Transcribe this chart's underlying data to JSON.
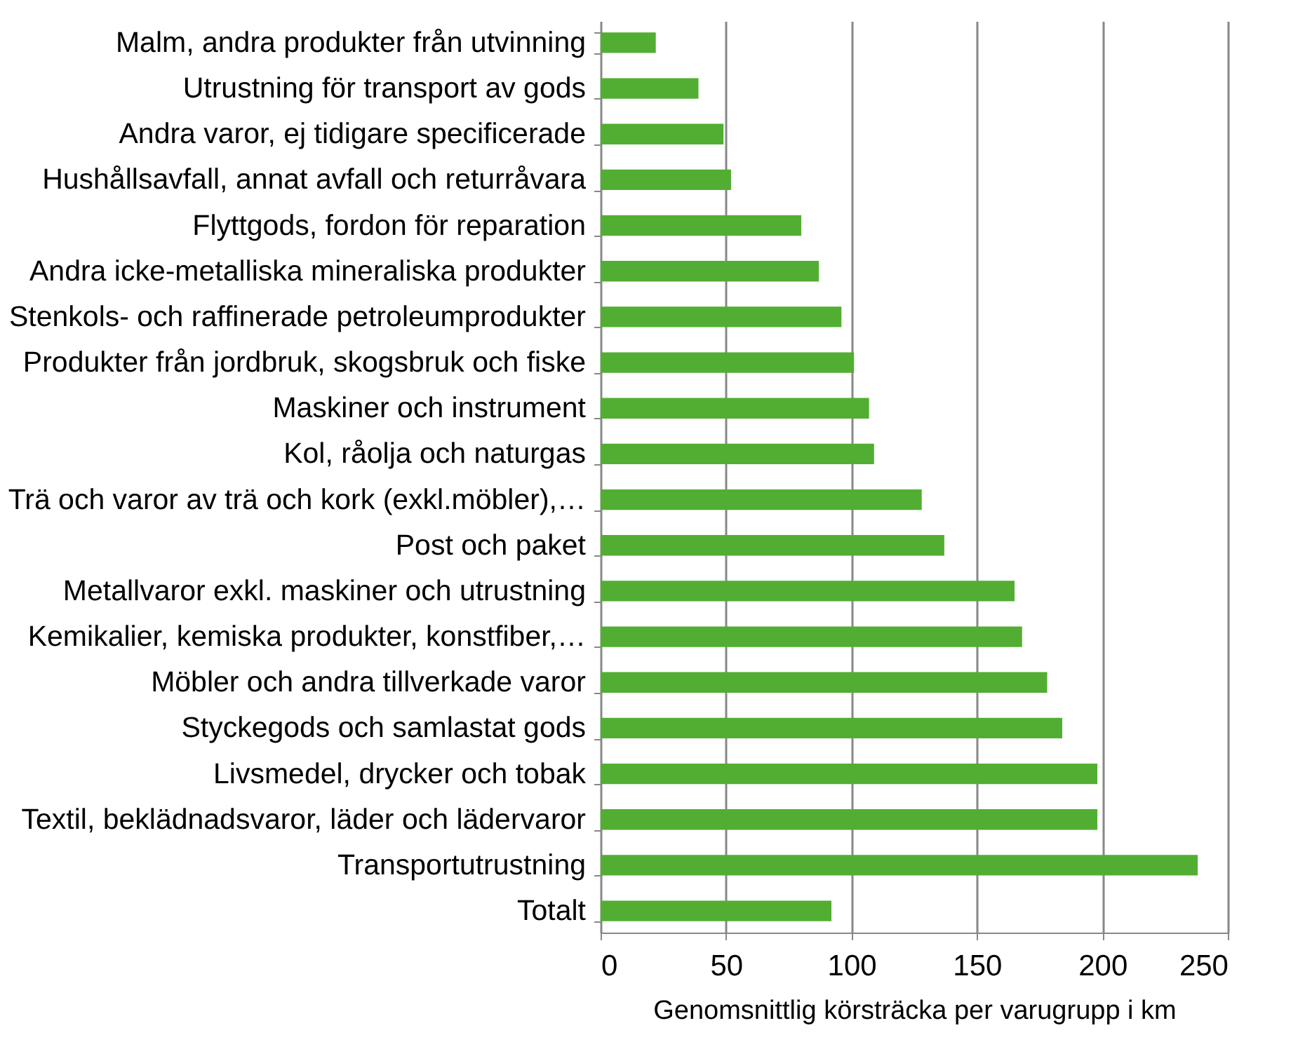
{
  "chart_data": {
    "type": "bar",
    "orientation": "horizontal",
    "xlabel": "Genomsnittlig  körsträcka per varugrupp i km",
    "categories": [
      "Malm, andra produkter från utvinning",
      "Utrustning för transport av gods",
      "Andra varor, ej tidigare specificerade",
      "Hushållsavfall, annat avfall och returråvara",
      "Flyttgods, fordon för reparation",
      "Andra icke-metalliska mineraliska produkter",
      "Stenkols- och raffinerade petroleumprodukter",
      "Produkter från jordbruk, skogsbruk och fiske",
      "Maskiner och instrument",
      "Kol, råolja och naturgas",
      "Trä och varor av trä och kork (exkl.möbler),…",
      "Post och paket",
      "Metallvaror exkl. maskiner och utrustning",
      "Kemikalier, kemiska produkter, konstfiber,…",
      "Möbler och andra tillverkade varor",
      "Styckegods och samlastat gods",
      "Livsmedel, drycker och tobak",
      "Textil, beklädnadsvaror, läder och lädervaror",
      "Transportutrustning",
      "Totalt"
    ],
    "values": [
      22,
      39,
      49,
      52,
      80,
      87,
      96,
      101,
      107,
      109,
      128,
      137,
      165,
      168,
      178,
      184,
      198,
      198,
      238,
      92
    ],
    "color": "#52ae32",
    "xlim": [
      0,
      250
    ],
    "xticks": [
      0,
      50,
      100,
      150,
      200,
      250
    ],
    "grid": "x"
  }
}
